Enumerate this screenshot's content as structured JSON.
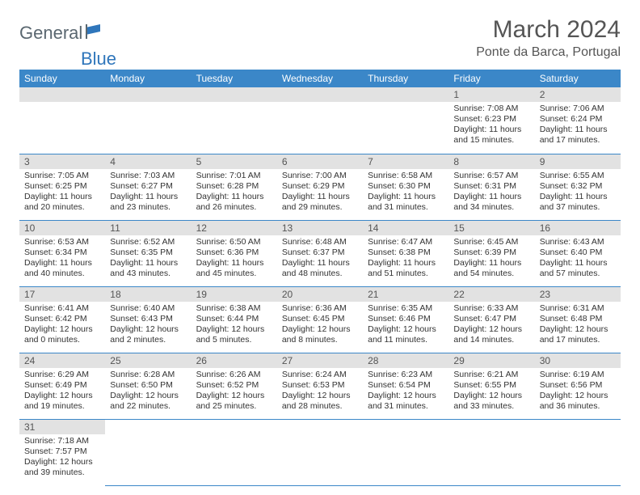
{
  "logo": {
    "part1": "General",
    "part2": "Blue"
  },
  "title": "March 2024",
  "location": "Ponte da Barca, Portugal",
  "colors": {
    "header_bg": "#3b87c8",
    "header_fg": "#ffffff",
    "day_bar_bg": "#e2e2e2",
    "cell_border": "#3b87c8",
    "text": "#333333",
    "title_text": "#555555",
    "logo_gray": "#5a6770",
    "logo_blue": "#2f76bb"
  },
  "weekdays": [
    "Sunday",
    "Monday",
    "Tuesday",
    "Wednesday",
    "Thursday",
    "Friday",
    "Saturday"
  ],
  "weeks": [
    [
      null,
      null,
      null,
      null,
      null,
      {
        "n": "1",
        "sr": "Sunrise: 7:08 AM",
        "ss": "Sunset: 6:23 PM",
        "dl": "Daylight: 11 hours and 15 minutes."
      },
      {
        "n": "2",
        "sr": "Sunrise: 7:06 AM",
        "ss": "Sunset: 6:24 PM",
        "dl": "Daylight: 11 hours and 17 minutes."
      }
    ],
    [
      {
        "n": "3",
        "sr": "Sunrise: 7:05 AM",
        "ss": "Sunset: 6:25 PM",
        "dl": "Daylight: 11 hours and 20 minutes."
      },
      {
        "n": "4",
        "sr": "Sunrise: 7:03 AM",
        "ss": "Sunset: 6:27 PM",
        "dl": "Daylight: 11 hours and 23 minutes."
      },
      {
        "n": "5",
        "sr": "Sunrise: 7:01 AM",
        "ss": "Sunset: 6:28 PM",
        "dl": "Daylight: 11 hours and 26 minutes."
      },
      {
        "n": "6",
        "sr": "Sunrise: 7:00 AM",
        "ss": "Sunset: 6:29 PM",
        "dl": "Daylight: 11 hours and 29 minutes."
      },
      {
        "n": "7",
        "sr": "Sunrise: 6:58 AM",
        "ss": "Sunset: 6:30 PM",
        "dl": "Daylight: 11 hours and 31 minutes."
      },
      {
        "n": "8",
        "sr": "Sunrise: 6:57 AM",
        "ss": "Sunset: 6:31 PM",
        "dl": "Daylight: 11 hours and 34 minutes."
      },
      {
        "n": "9",
        "sr": "Sunrise: 6:55 AM",
        "ss": "Sunset: 6:32 PM",
        "dl": "Daylight: 11 hours and 37 minutes."
      }
    ],
    [
      {
        "n": "10",
        "sr": "Sunrise: 6:53 AM",
        "ss": "Sunset: 6:34 PM",
        "dl": "Daylight: 11 hours and 40 minutes."
      },
      {
        "n": "11",
        "sr": "Sunrise: 6:52 AM",
        "ss": "Sunset: 6:35 PM",
        "dl": "Daylight: 11 hours and 43 minutes."
      },
      {
        "n": "12",
        "sr": "Sunrise: 6:50 AM",
        "ss": "Sunset: 6:36 PM",
        "dl": "Daylight: 11 hours and 45 minutes."
      },
      {
        "n": "13",
        "sr": "Sunrise: 6:48 AM",
        "ss": "Sunset: 6:37 PM",
        "dl": "Daylight: 11 hours and 48 minutes."
      },
      {
        "n": "14",
        "sr": "Sunrise: 6:47 AM",
        "ss": "Sunset: 6:38 PM",
        "dl": "Daylight: 11 hours and 51 minutes."
      },
      {
        "n": "15",
        "sr": "Sunrise: 6:45 AM",
        "ss": "Sunset: 6:39 PM",
        "dl": "Daylight: 11 hours and 54 minutes."
      },
      {
        "n": "16",
        "sr": "Sunrise: 6:43 AM",
        "ss": "Sunset: 6:40 PM",
        "dl": "Daylight: 11 hours and 57 minutes."
      }
    ],
    [
      {
        "n": "17",
        "sr": "Sunrise: 6:41 AM",
        "ss": "Sunset: 6:42 PM",
        "dl": "Daylight: 12 hours and 0 minutes."
      },
      {
        "n": "18",
        "sr": "Sunrise: 6:40 AM",
        "ss": "Sunset: 6:43 PM",
        "dl": "Daylight: 12 hours and 2 minutes."
      },
      {
        "n": "19",
        "sr": "Sunrise: 6:38 AM",
        "ss": "Sunset: 6:44 PM",
        "dl": "Daylight: 12 hours and 5 minutes."
      },
      {
        "n": "20",
        "sr": "Sunrise: 6:36 AM",
        "ss": "Sunset: 6:45 PM",
        "dl": "Daylight: 12 hours and 8 minutes."
      },
      {
        "n": "21",
        "sr": "Sunrise: 6:35 AM",
        "ss": "Sunset: 6:46 PM",
        "dl": "Daylight: 12 hours and 11 minutes."
      },
      {
        "n": "22",
        "sr": "Sunrise: 6:33 AM",
        "ss": "Sunset: 6:47 PM",
        "dl": "Daylight: 12 hours and 14 minutes."
      },
      {
        "n": "23",
        "sr": "Sunrise: 6:31 AM",
        "ss": "Sunset: 6:48 PM",
        "dl": "Daylight: 12 hours and 17 minutes."
      }
    ],
    [
      {
        "n": "24",
        "sr": "Sunrise: 6:29 AM",
        "ss": "Sunset: 6:49 PM",
        "dl": "Daylight: 12 hours and 19 minutes."
      },
      {
        "n": "25",
        "sr": "Sunrise: 6:28 AM",
        "ss": "Sunset: 6:50 PM",
        "dl": "Daylight: 12 hours and 22 minutes."
      },
      {
        "n": "26",
        "sr": "Sunrise: 6:26 AM",
        "ss": "Sunset: 6:52 PM",
        "dl": "Daylight: 12 hours and 25 minutes."
      },
      {
        "n": "27",
        "sr": "Sunrise: 6:24 AM",
        "ss": "Sunset: 6:53 PM",
        "dl": "Daylight: 12 hours and 28 minutes."
      },
      {
        "n": "28",
        "sr": "Sunrise: 6:23 AM",
        "ss": "Sunset: 6:54 PM",
        "dl": "Daylight: 12 hours and 31 minutes."
      },
      {
        "n": "29",
        "sr": "Sunrise: 6:21 AM",
        "ss": "Sunset: 6:55 PM",
        "dl": "Daylight: 12 hours and 33 minutes."
      },
      {
        "n": "30",
        "sr": "Sunrise: 6:19 AM",
        "ss": "Sunset: 6:56 PM",
        "dl": "Daylight: 12 hours and 36 minutes."
      }
    ],
    [
      {
        "n": "31",
        "sr": "Sunrise: 7:18 AM",
        "ss": "Sunset: 7:57 PM",
        "dl": "Daylight: 12 hours and 39 minutes."
      },
      null,
      null,
      null,
      null,
      null,
      null
    ]
  ]
}
